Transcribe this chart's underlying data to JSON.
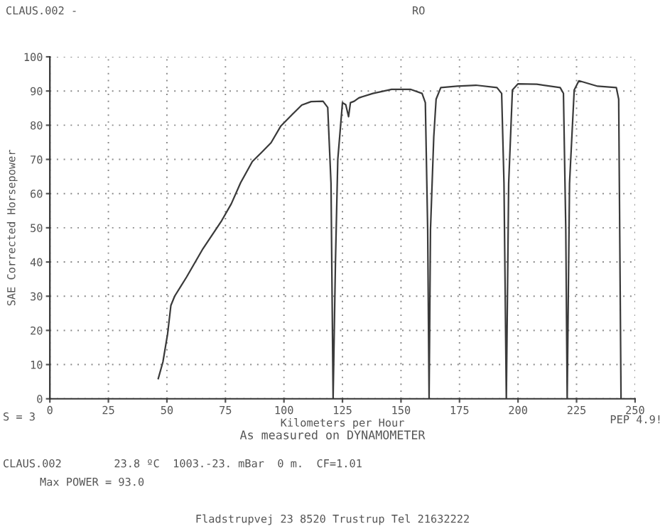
{
  "chart_data": {
    "type": "line",
    "xlabel": "Kilometers per Hour",
    "ylabel": "SAE Corrected Horsepower",
    "x": [
      46.3,
      48.3,
      50.3,
      51.7,
      53.3,
      58.4,
      65.4,
      73.4,
      77.5,
      81.5,
      86.5,
      90.5,
      94.5,
      98.6,
      103.6,
      107.6,
      111.6,
      116.7,
      118.7,
      120.1,
      121,
      122,
      123,
      125,
      126.4,
      127.6,
      128.4,
      130,
      132,
      138,
      146,
      154,
      159,
      160.4,
      161.4,
      162,
      162.6,
      164,
      165,
      167,
      174,
      182,
      191,
      193,
      194,
      195,
      196,
      197.6,
      200,
      208,
      218,
      219.4,
      220.4,
      221,
      222,
      224,
      226,
      234,
      242,
      243,
      244
    ],
    "series": [
      {
        "color": "#3a3a3a",
        "values": [
          5.9,
          10.8,
          19,
          27.3,
          30,
          35.6,
          43.9,
          52.1,
          57,
          63.2,
          69.4,
          72.1,
          74.9,
          79.7,
          83.2,
          85.9,
          86.9,
          87,
          85.2,
          63,
          0,
          40,
          70,
          86.6,
          86,
          82.5,
          86.6,
          87,
          88,
          89.3,
          90.5,
          90.5,
          89.3,
          86.6,
          49.5,
          0,
          49.5,
          76.6,
          87.6,
          91,
          91.4,
          91.7,
          91,
          89.3,
          63,
          0,
          63,
          90.3,
          92.1,
          92,
          91,
          89.3,
          49.5,
          0,
          63,
          90.3,
          93,
          91.4,
          91,
          87.6,
          0
        ]
      }
    ],
    "xlim": [
      0,
      250
    ],
    "xticks": [
      0,
      25,
      50,
      75,
      100,
      125,
      150,
      175,
      200,
      225,
      250
    ],
    "ylim": [
      0,
      100
    ],
    "yticks": [
      0,
      10,
      20,
      30,
      40,
      50,
      60,
      70,
      80,
      90,
      100
    ],
    "grid": true,
    "annotations": [
      "CLAUS.002 -",
      "RO",
      "S = 3",
      "PEP 4.9!",
      "As measured on DYNAMOMETER",
      "CLAUS.002        23.8 ºC  1003.-23. mBar  0 m.  CF=1.01",
      "Max POWER = 93.0",
      "Fladstrupvej 23 8520 Trustrup Tel 21632222"
    ]
  }
}
